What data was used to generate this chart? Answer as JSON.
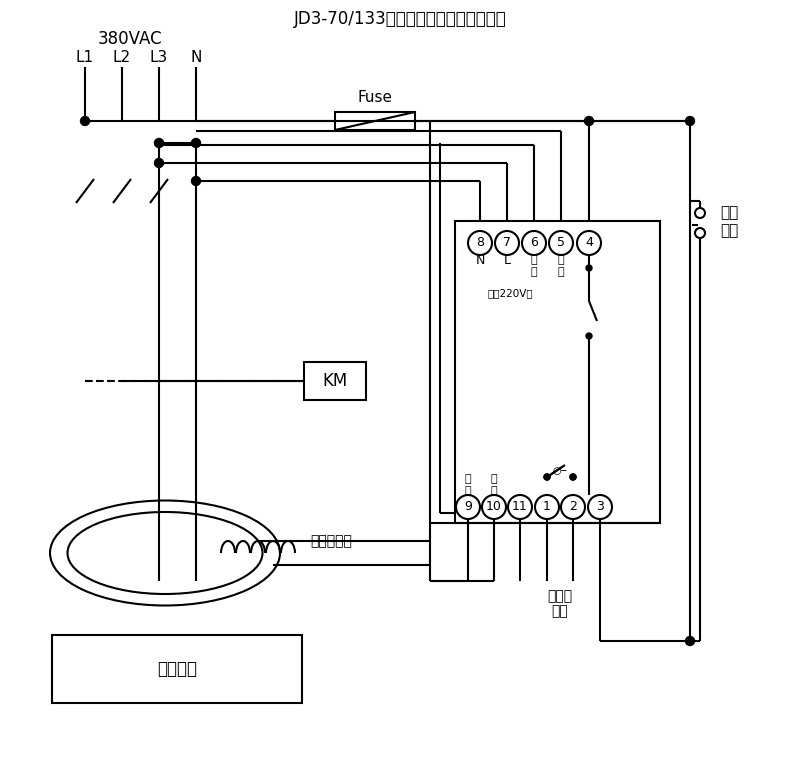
{
  "bg": "#ffffff",
  "lc": "#000000",
  "title": "JD3-70/133漏电继电器典型应用接线图",
  "voltage": "380VAC",
  "phases": [
    "L1",
    "L2",
    "L3",
    "N"
  ],
  "fuse_lbl": "Fuse",
  "km_lbl": "KM",
  "transformer_lbl": "零序互感器",
  "device_lbl": "用户设备",
  "self_lock": [
    "自锁",
    "开关"
  ],
  "alarm_lbl1": "接声光",
  "alarm_lbl2": "报警",
  "t_top_nums": [
    "8",
    "7",
    "6",
    "5",
    "4"
  ],
  "t_top_sub1": [
    "N",
    "L",
    "试",
    "试",
    ""
  ],
  "t_top_sub2": [
    "",
    "",
    "验",
    "验",
    ""
  ],
  "power_lbl": "电源220V～",
  "t_bot_nums": [
    "9",
    "10",
    "11",
    "1",
    "2",
    "3"
  ],
  "t_bot_sub1": [
    "信",
    "信",
    "",
    "",
    "",
    ""
  ],
  "t_bot_sub2": [
    "号",
    "号",
    "",
    "",
    "",
    ""
  ]
}
